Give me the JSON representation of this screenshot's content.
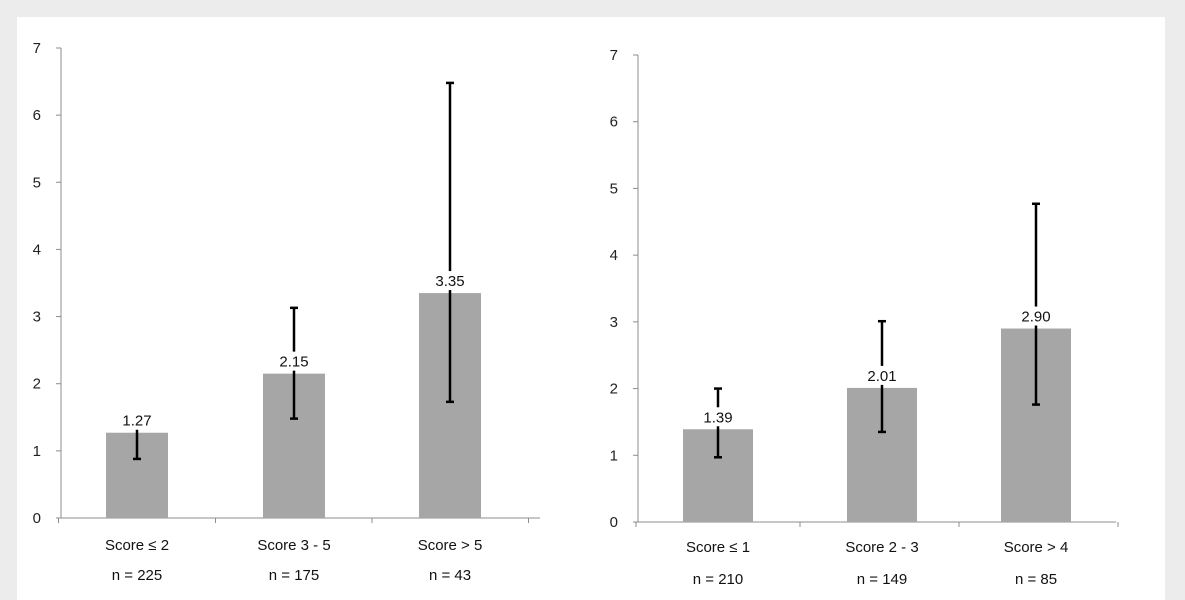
{
  "chart_data": [
    {
      "type": "bar",
      "categories": [
        "Score ≤ 2",
        "Score 3 - 5",
        "Score > 5"
      ],
      "sample_sizes": [
        "n = 225",
        "n = 175",
        "n = 43"
      ],
      "values": [
        1.27,
        2.15,
        3.35
      ],
      "value_labels": [
        "1.27",
        "2.15",
        "3.35"
      ],
      "error_low": [
        0.88,
        1.48,
        1.73
      ],
      "error_high": [
        1.5,
        3.13,
        6.48
      ],
      "ylim": [
        0,
        7
      ],
      "yticks": [
        "0",
        "1",
        "2",
        "3",
        "4",
        "5",
        "6",
        "7"
      ],
      "grid": false,
      "bar_color": "#a6a6a6"
    },
    {
      "type": "bar",
      "categories": [
        "Score ≤ 1",
        "Score 2 - 3",
        "Score > 4"
      ],
      "sample_sizes": [
        "n = 210",
        "n = 149",
        "n = 85"
      ],
      "values": [
        1.39,
        2.01,
        2.9
      ],
      "value_labels": [
        "1.39",
        "2.01",
        "2.90"
      ],
      "error_low": [
        0.97,
        1.35,
        1.76
      ],
      "error_high": [
        2.0,
        3.01,
        4.77
      ],
      "ylim": [
        0,
        7
      ],
      "yticks": [
        "0",
        "1",
        "2",
        "3",
        "4",
        "5",
        "6",
        "7"
      ],
      "grid": false,
      "bar_color": "#a6a6a6"
    }
  ]
}
